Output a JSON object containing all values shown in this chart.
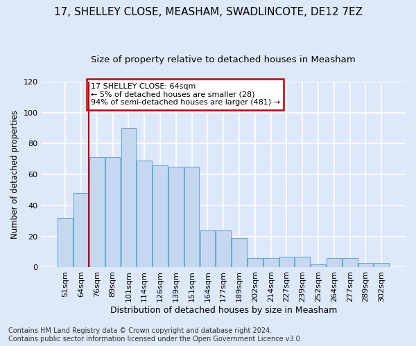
{
  "title1": "17, SHELLEY CLOSE, MEASHAM, SWADLINCOTE, DE12 7EZ",
  "title2": "Size of property relative to detached houses in Measham",
  "xlabel": "Distribution of detached houses by size in Measham",
  "ylabel": "Number of detached properties",
  "categories": [
    "51sqm",
    "64sqm",
    "76sqm",
    "89sqm",
    "101sqm",
    "114sqm",
    "126sqm",
    "139sqm",
    "151sqm",
    "164sqm",
    "177sqm",
    "189sqm",
    "202sqm",
    "214sqm",
    "227sqm",
    "239sqm",
    "252sqm",
    "264sqm",
    "277sqm",
    "289sqm",
    "302sqm"
  ],
  "values": [
    32,
    48,
    71,
    71,
    90,
    69,
    66,
    65,
    65,
    24,
    24,
    19,
    6,
    6,
    7,
    7,
    2,
    6,
    6,
    3,
    3
  ],
  "bar_color": "#c5d8f0",
  "bar_edge_color": "#6aaad4",
  "vline_color": "#cc0000",
  "vline_x": 1.5,
  "annotation_text": "17 SHELLEY CLOSE: 64sqm\n← 5% of detached houses are smaller (28)\n94% of semi-detached houses are larger (481) →",
  "annotation_box_color": "#ffffff",
  "annotation_box_edge": "#cc0000",
  "ylim": [
    0,
    120
  ],
  "yticks": [
    0,
    20,
    40,
    60,
    80,
    100,
    120
  ],
  "bg_color": "#dde8f8",
  "grid_color": "#ffffff",
  "title1_fontsize": 11,
  "title2_fontsize": 9.5,
  "xlabel_fontsize": 9,
  "ylabel_fontsize": 8.5,
  "tick_fontsize": 8,
  "annot_fontsize": 8,
  "footnote_fontsize": 7,
  "footnote": "Contains HM Land Registry data © Crown copyright and database right 2024.\nContains public sector information licensed under the Open Government Licence v3.0."
}
